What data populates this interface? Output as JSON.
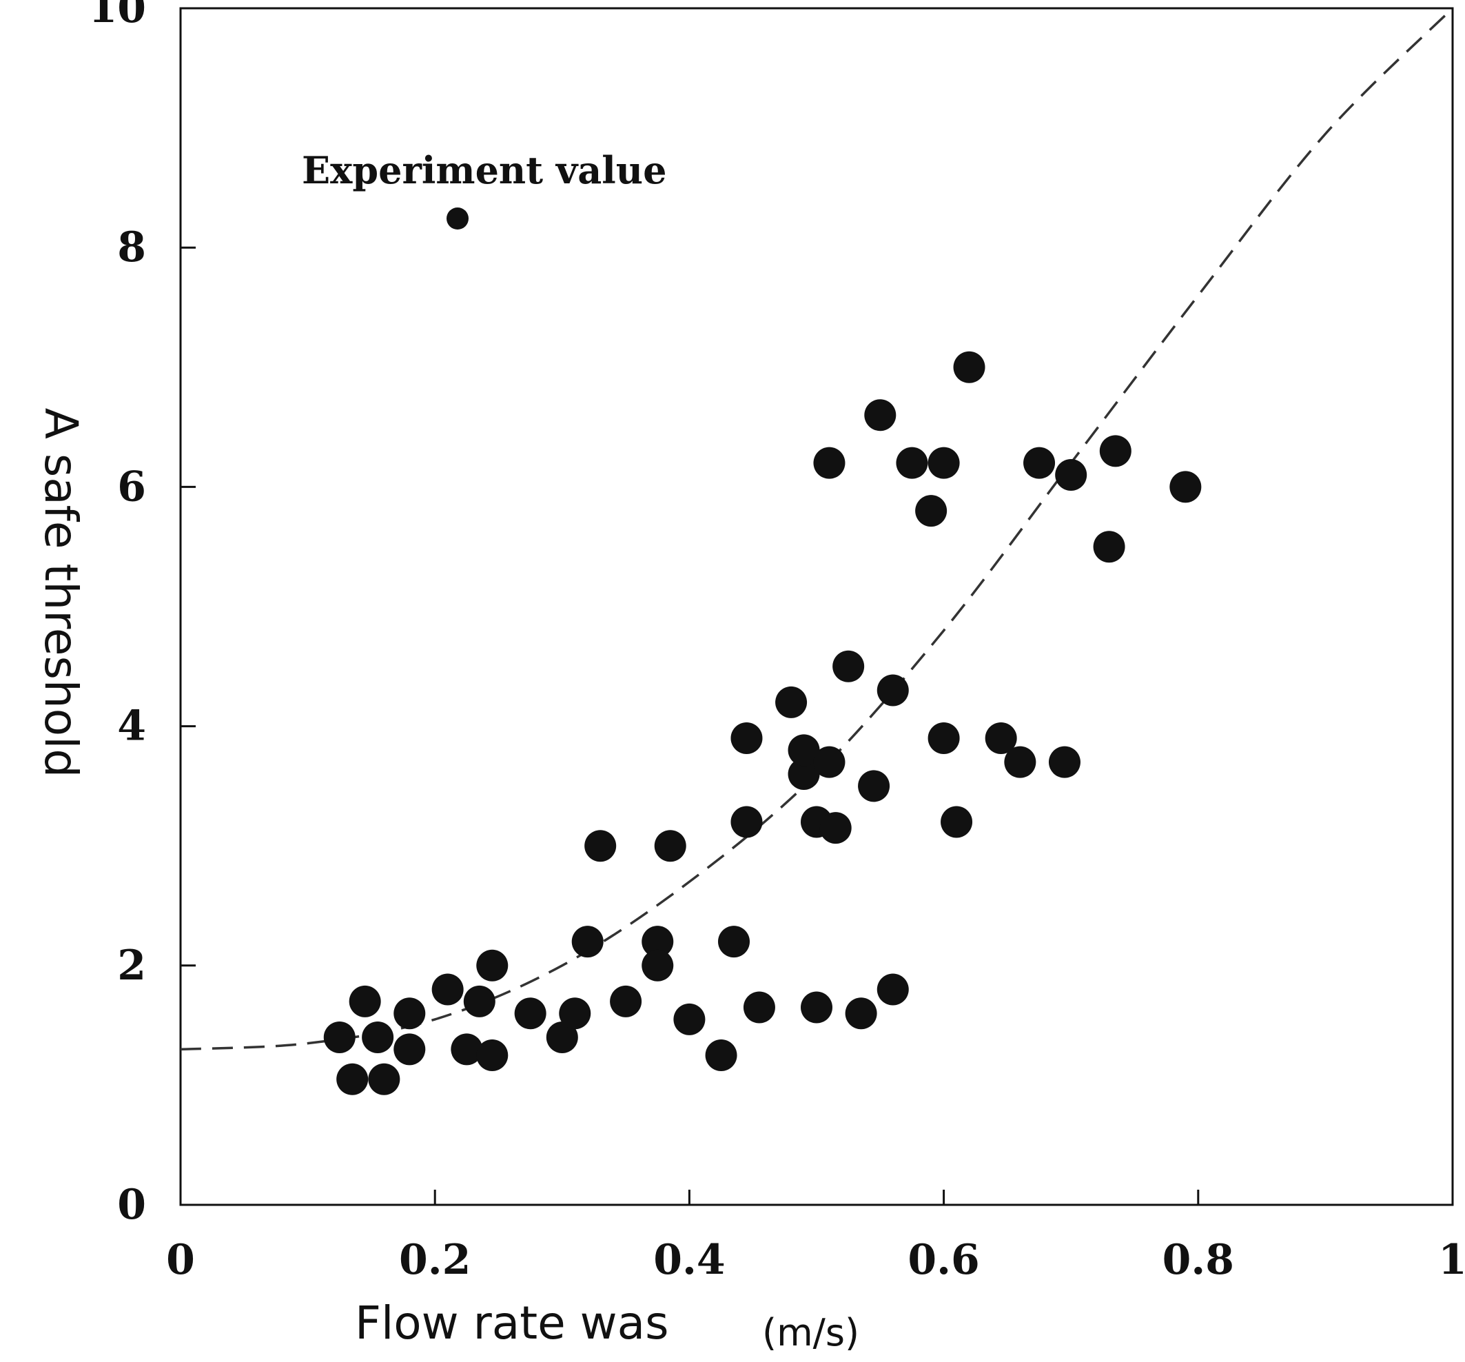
{
  "chart_data": {
    "type": "scatter",
    "xlabel": "Flow rate was",
    "xunit": "(m/s)",
    "ylabel": "A safe threshold",
    "xlim": [
      0,
      1
    ],
    "ylim": [
      0,
      10
    ],
    "xticks": [
      {
        "value": 0,
        "label": "0"
      },
      {
        "value": 0.2,
        "label": "0.2"
      },
      {
        "value": 0.4,
        "label": "0.4"
      },
      {
        "value": 0.6,
        "label": "0.6"
      },
      {
        "value": 0.8,
        "label": "0.8"
      },
      {
        "value": 1,
        "label": "1"
      }
    ],
    "yticks": [
      {
        "value": 0,
        "label": "0"
      },
      {
        "value": 2,
        "label": "2"
      },
      {
        "value": 4,
        "label": "4"
      },
      {
        "value": 6,
        "label": "6"
      },
      {
        "value": 8,
        "label": "8"
      },
      {
        "value": 10,
        "label": "10"
      }
    ],
    "legend": {
      "label": "Experiment value",
      "marker": "filled-circle",
      "placement": "top-left"
    },
    "grid": false,
    "marker_color": "#111111",
    "series": [
      {
        "name": "Experiment value",
        "points": [
          [
            0.125,
            1.4
          ],
          [
            0.135,
            1.05
          ],
          [
            0.145,
            1.7
          ],
          [
            0.155,
            1.4
          ],
          [
            0.16,
            1.05
          ],
          [
            0.18,
            1.6
          ],
          [
            0.18,
            1.3
          ],
          [
            0.21,
            1.8
          ],
          [
            0.225,
            1.3
          ],
          [
            0.235,
            1.7
          ],
          [
            0.245,
            1.25
          ],
          [
            0.245,
            2.0
          ],
          [
            0.275,
            1.6
          ],
          [
            0.3,
            1.4
          ],
          [
            0.31,
            1.6
          ],
          [
            0.32,
            2.2
          ],
          [
            0.33,
            3.0
          ],
          [
            0.35,
            1.7
          ],
          [
            0.375,
            2.2
          ],
          [
            0.375,
            2.0
          ],
          [
            0.385,
            3.0
          ],
          [
            0.4,
            1.55
          ],
          [
            0.425,
            1.25
          ],
          [
            0.435,
            2.2
          ],
          [
            0.445,
            3.9
          ],
          [
            0.445,
            3.2
          ],
          [
            0.455,
            1.65
          ],
          [
            0.48,
            4.2
          ],
          [
            0.49,
            3.6
          ],
          [
            0.49,
            3.8
          ],
          [
            0.5,
            3.2
          ],
          [
            0.5,
            1.65
          ],
          [
            0.51,
            3.7
          ],
          [
            0.51,
            6.2
          ],
          [
            0.515,
            3.15
          ],
          [
            0.525,
            4.5
          ],
          [
            0.535,
            1.6
          ],
          [
            0.545,
            3.5
          ],
          [
            0.55,
            6.6
          ],
          [
            0.56,
            4.3
          ],
          [
            0.56,
            1.8
          ],
          [
            0.575,
            6.2
          ],
          [
            0.59,
            5.8
          ],
          [
            0.6,
            6.2
          ],
          [
            0.6,
            3.9
          ],
          [
            0.61,
            3.2
          ],
          [
            0.62,
            7.0
          ],
          [
            0.645,
            3.9
          ],
          [
            0.66,
            3.7
          ],
          [
            0.675,
            6.2
          ],
          [
            0.695,
            3.7
          ],
          [
            0.7,
            6.1
          ],
          [
            0.73,
            5.5
          ],
          [
            0.735,
            6.3
          ],
          [
            0.79,
            6.0
          ]
        ]
      },
      {
        "points": [
          [
            0.0,
            1.3
          ],
          [
            0.1,
            1.35
          ],
          [
            0.2,
            1.55
          ],
          [
            0.3,
            2.0
          ],
          [
            0.4,
            2.7
          ],
          [
            0.5,
            3.6
          ],
          [
            0.6,
            4.8
          ],
          [
            0.7,
            6.2
          ],
          [
            0.8,
            7.6
          ],
          [
            0.9,
            8.95
          ],
          [
            1.0,
            10.0
          ]
        ]
      }
    ]
  }
}
